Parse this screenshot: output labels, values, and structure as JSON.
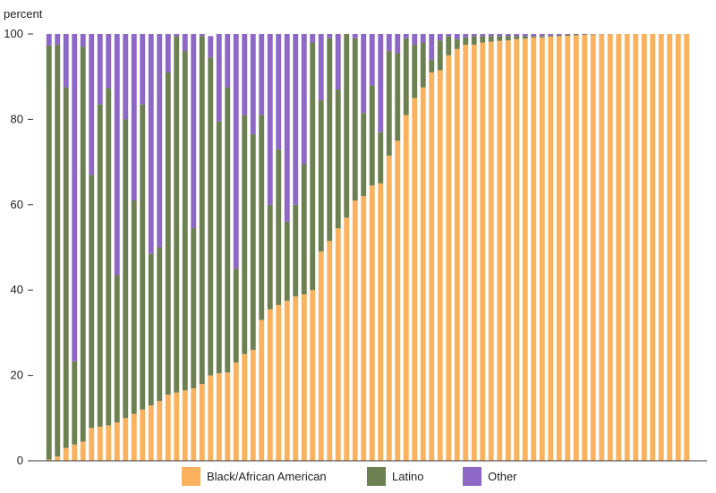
{
  "chart_data": {
    "type": "bar",
    "stacked": true,
    "ylabel": "percent",
    "ylim": [
      0,
      100
    ],
    "yticks": [
      0,
      20,
      40,
      60,
      80,
      100
    ],
    "grid": false,
    "legend_position": "bottom",
    "series": [
      {
        "name": "Black/African American",
        "color": "#fbb25e",
        "values": [
          0.3,
          1,
          3,
          3.8,
          4.5,
          7.7,
          8,
          8.3,
          9,
          10,
          11,
          12,
          13,
          14,
          15.5,
          16,
          16.5,
          17,
          18,
          20,
          20.5,
          20.7,
          23,
          25,
          26,
          33,
          35.5,
          36.5,
          37.5,
          38.5,
          39,
          40,
          49,
          51.5,
          54.5,
          57,
          61,
          62,
          64.5,
          65,
          71.5,
          75,
          81,
          85,
          87.5,
          91,
          91.5,
          95,
          96.5,
          97.5,
          97.5,
          98,
          98.2,
          98.4,
          98.5,
          98.8,
          98.9,
          99.2,
          99.2,
          99.4,
          99.5,
          99.6,
          99.7,
          99.8,
          99.85,
          99.9,
          99.95,
          100,
          100,
          100,
          100,
          100,
          100,
          100,
          100,
          100
        ]
      },
      {
        "name": "Latino",
        "color": "#6c8052",
        "values": [
          97,
          96.5,
          84.5,
          19.5,
          92.5,
          59.3,
          75.5,
          79,
          34.5,
          70,
          50,
          71.5,
          35.5,
          36,
          75.5,
          83.5,
          79.5,
          37.5,
          81.5,
          74.5,
          59,
          66.8,
          22,
          56,
          50.5,
          48,
          24.5,
          36.5,
          18.5,
          21.5,
          30.5,
          58,
          35.5,
          47.5,
          32.5,
          43,
          38,
          19.5,
          23.5,
          12,
          24.5,
          20.5,
          18,
          12.5,
          10.5,
          3,
          7,
          4.5,
          2.3,
          1.7,
          2,
          1.5,
          1.3,
          1.1,
          1,
          0.7,
          0.6,
          0.3,
          0.3,
          0.2,
          0.2,
          0.2,
          0.2,
          0.1,
          0.1,
          0.05,
          0.05,
          0,
          0,
          0,
          0,
          0,
          0,
          0,
          0,
          0
        ]
      },
      {
        "name": "Other",
        "color": "#8d68c7",
        "values": [
          2.7,
          2.5,
          12.5,
          76.7,
          3,
          33,
          16.5,
          12.7,
          56.5,
          20,
          39,
          16.5,
          51.5,
          50,
          9,
          0.5,
          4,
          45.5,
          0.5,
          5,
          20.5,
          12.5,
          55,
          19,
          23.5,
          19,
          40,
          27,
          44,
          40,
          30.5,
          2,
          15.5,
          1,
          13,
          0,
          1,
          18.5,
          12,
          23,
          4,
          4.5,
          1,
          2.5,
          2,
          6,
          1.5,
          0.5,
          1.2,
          0.8,
          0.5,
          0.5,
          0.5,
          0.5,
          0.5,
          0.5,
          0.5,
          0.5,
          0.5,
          0.4,
          0.3,
          0.2,
          0.1,
          0.1,
          0.05,
          0.05,
          0,
          0,
          0,
          0,
          0,
          0,
          0,
          0,
          0,
          0
        ]
      }
    ]
  },
  "legend": {
    "items": [
      {
        "label": "Black/African American",
        "color": "#fbb25e"
      },
      {
        "label": "Latino",
        "color": "#6c8052"
      },
      {
        "label": "Other",
        "color": "#8d68c7"
      }
    ]
  },
  "axis": {
    "unit_label": "percent",
    "tick_labels": [
      "0",
      "20",
      "40",
      "60",
      "80",
      "100"
    ]
  }
}
